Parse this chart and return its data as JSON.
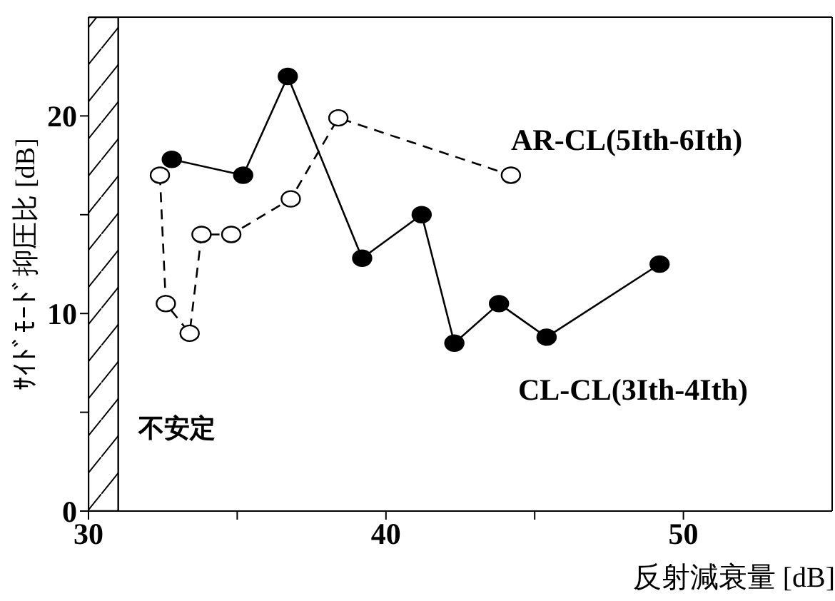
{
  "chart_data": {
    "type": "line",
    "xlabel": "反射減衰量 [dB]",
    "ylabel": "ｻｲﾄﾞﾓｰﾄﾞ抑圧比 [dB]",
    "xlim": [
      30,
      55
    ],
    "xticks": [
      30,
      {
        "value": 35,
        "label": null
      },
      40,
      {
        "value": 45,
        "label": null
      },
      50
    ],
    "ylim": [
      0,
      25
    ],
    "yticks": [
      0,
      {
        "value": 5,
        "label": null
      },
      10,
      {
        "value": 15,
        "label": null
      },
      20
    ],
    "marker": "circle",
    "bands": [
      {
        "axis": "x",
        "from": 30,
        "to": 31,
        "label": "不安定"
      }
    ],
    "series": [
      {
        "name": "AR-CL(5Ith-6Ith)",
        "color": "#000000",
        "line_style": "dashed",
        "x": [
          32.4,
          32.6,
          33.4,
          33.8,
          34.8,
          36.8,
          38.4,
          44.2
        ],
        "values": [
          17.0,
          10.5,
          9.0,
          14.0,
          14.0,
          15.8,
          19.9,
          17.0
        ]
      },
      {
        "name": "CL-CL(3Ith-4Ith)",
        "color": "#000000",
        "line_style": "solid",
        "x": [
          32.8,
          35.2,
          36.7,
          39.2,
          41.2,
          42.3,
          43.8,
          45.4,
          49.2
        ],
        "values": [
          17.8,
          17.0,
          22.0,
          12.8,
          15.0,
          8.5,
          10.5,
          8.8,
          12.5
        ]
      }
    ]
  }
}
